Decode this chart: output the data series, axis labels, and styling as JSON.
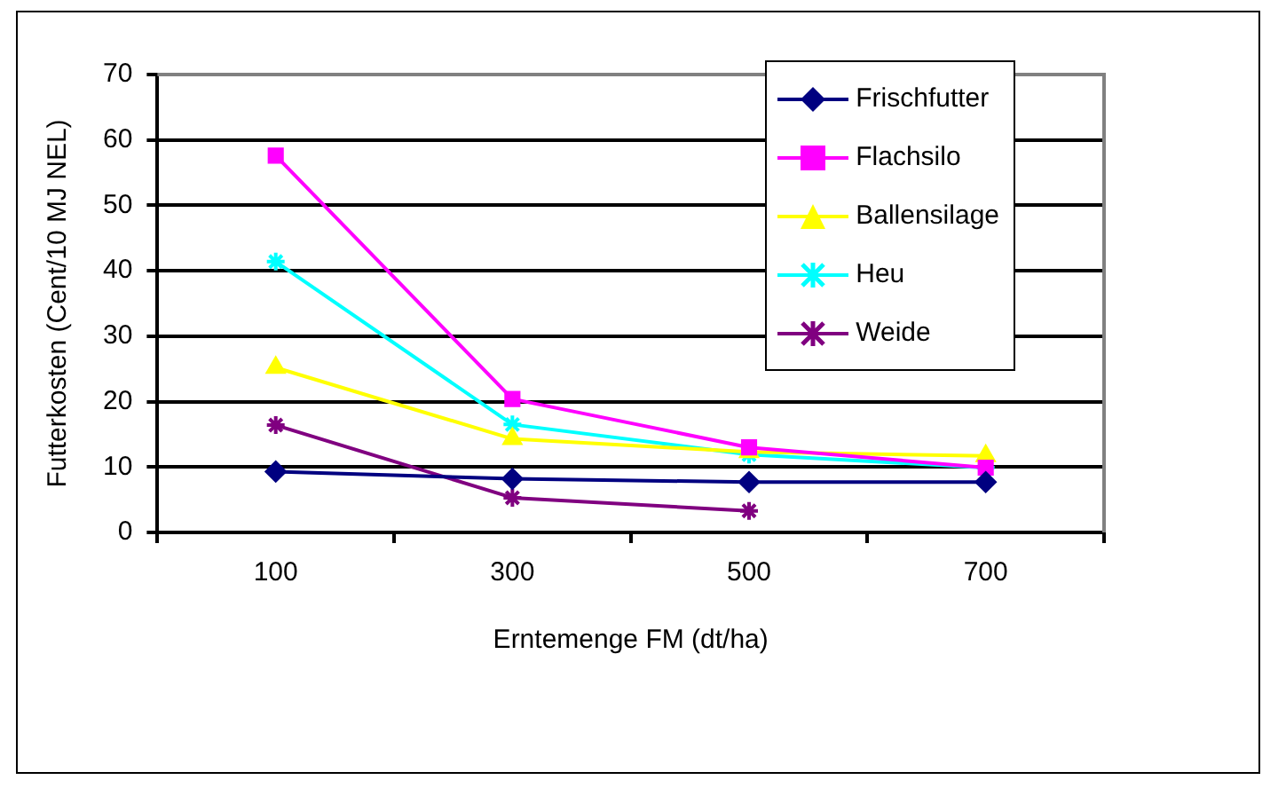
{
  "chart_data": {
    "type": "line",
    "xlabel": "Erntemenge FM (dt/ha)",
    "ylabel": "Futterkosten (Cent/10 MJ NEL)",
    "categories": [
      "100",
      "300",
      "500",
      "700"
    ],
    "ylim": [
      0,
      70
    ],
    "yticks": [
      0,
      10,
      20,
      30,
      40,
      50,
      60,
      70
    ],
    "grid": "y",
    "legend": "top right",
    "series": [
      {
        "name": "Frischfutter",
        "color": "#000080",
        "marker": "diamond",
        "values": [
          9.3,
          8.2,
          7.7,
          7.7
        ]
      },
      {
        "name": "Flachsilo",
        "color": "#ff00ff",
        "marker": "square",
        "values": [
          57.6,
          20.4,
          13,
          9.9
        ]
      },
      {
        "name": "Ballensilage",
        "color": "#ffff00",
        "marker": "triangle",
        "values": [
          25.2,
          14.3,
          12.3,
          11.7
        ]
      },
      {
        "name": "Heu",
        "color": "#00ffff",
        "marker": "cross",
        "values": [
          41.4,
          16.5,
          11.9,
          9.9
        ]
      },
      {
        "name": "Weide",
        "color": "#800080",
        "marker": "cross",
        "values": [
          16.4,
          5.3,
          3.3,
          null
        ]
      }
    ]
  }
}
